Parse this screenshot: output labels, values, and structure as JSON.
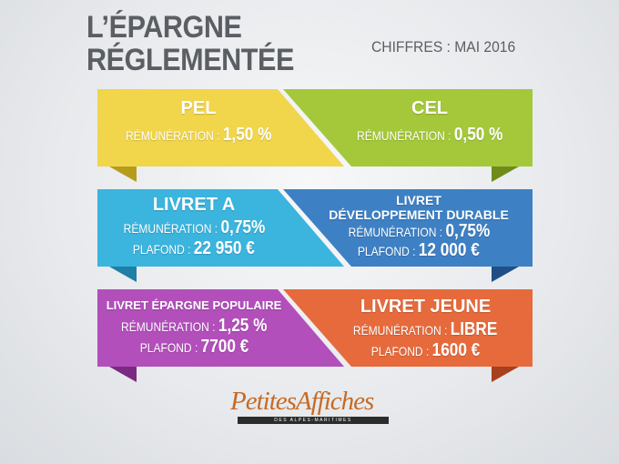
{
  "header": {
    "title_line1": "L’ÉPARGNE",
    "title_line2": "RÉGLEMENTÉE",
    "subtitle": "CHIFFRES : MAI 2016"
  },
  "colors": {
    "pel": "#f1d54b",
    "cel": "#a4c83a",
    "livret_a": "#3bb4de",
    "ldd": "#3e80c4",
    "lep": "#b24fbb",
    "livret_jeune": "#e66a3c"
  },
  "cards": {
    "pel": {
      "name": "PEL",
      "rate_label": "RÉMUNÉRATION :",
      "rate": "1,50 %"
    },
    "cel": {
      "name": "CEL",
      "rate_label": "RÉMUNÉRATION :",
      "rate": "0,50 %"
    },
    "livret_a": {
      "name": "LIVRET A",
      "rate_label": "RÉMUNÉRATION :",
      "rate": "0,75%",
      "cap_label": "PLAFOND :",
      "cap": "22 950 €"
    },
    "ldd": {
      "name_line1": "LIVRET",
      "name_line2": "DÉVELOPPEMENT DURABLE",
      "rate_label": "RÉMUNÉRATION :",
      "rate": "0,75%",
      "cap_label": "PLAFOND :",
      "cap": "12 000 €"
    },
    "lep": {
      "name": "LIVRET ÉPARGNE POPULAIRE",
      "rate_label": "RÉMUNÉRATION :",
      "rate": "1,25 %",
      "cap_label": "PLAFOND :",
      "cap": "7700 €"
    },
    "livret_jeune": {
      "name": "LIVRET JEUNE",
      "rate_label": "RÉMUNÉRATION :",
      "rate": "LIBRE",
      "cap_label": "PLAFOND :",
      "cap": "1600 €"
    }
  },
  "logo": {
    "text": "PetitesAffiches",
    "tagline": "DES ALPES-MARITIMES"
  }
}
